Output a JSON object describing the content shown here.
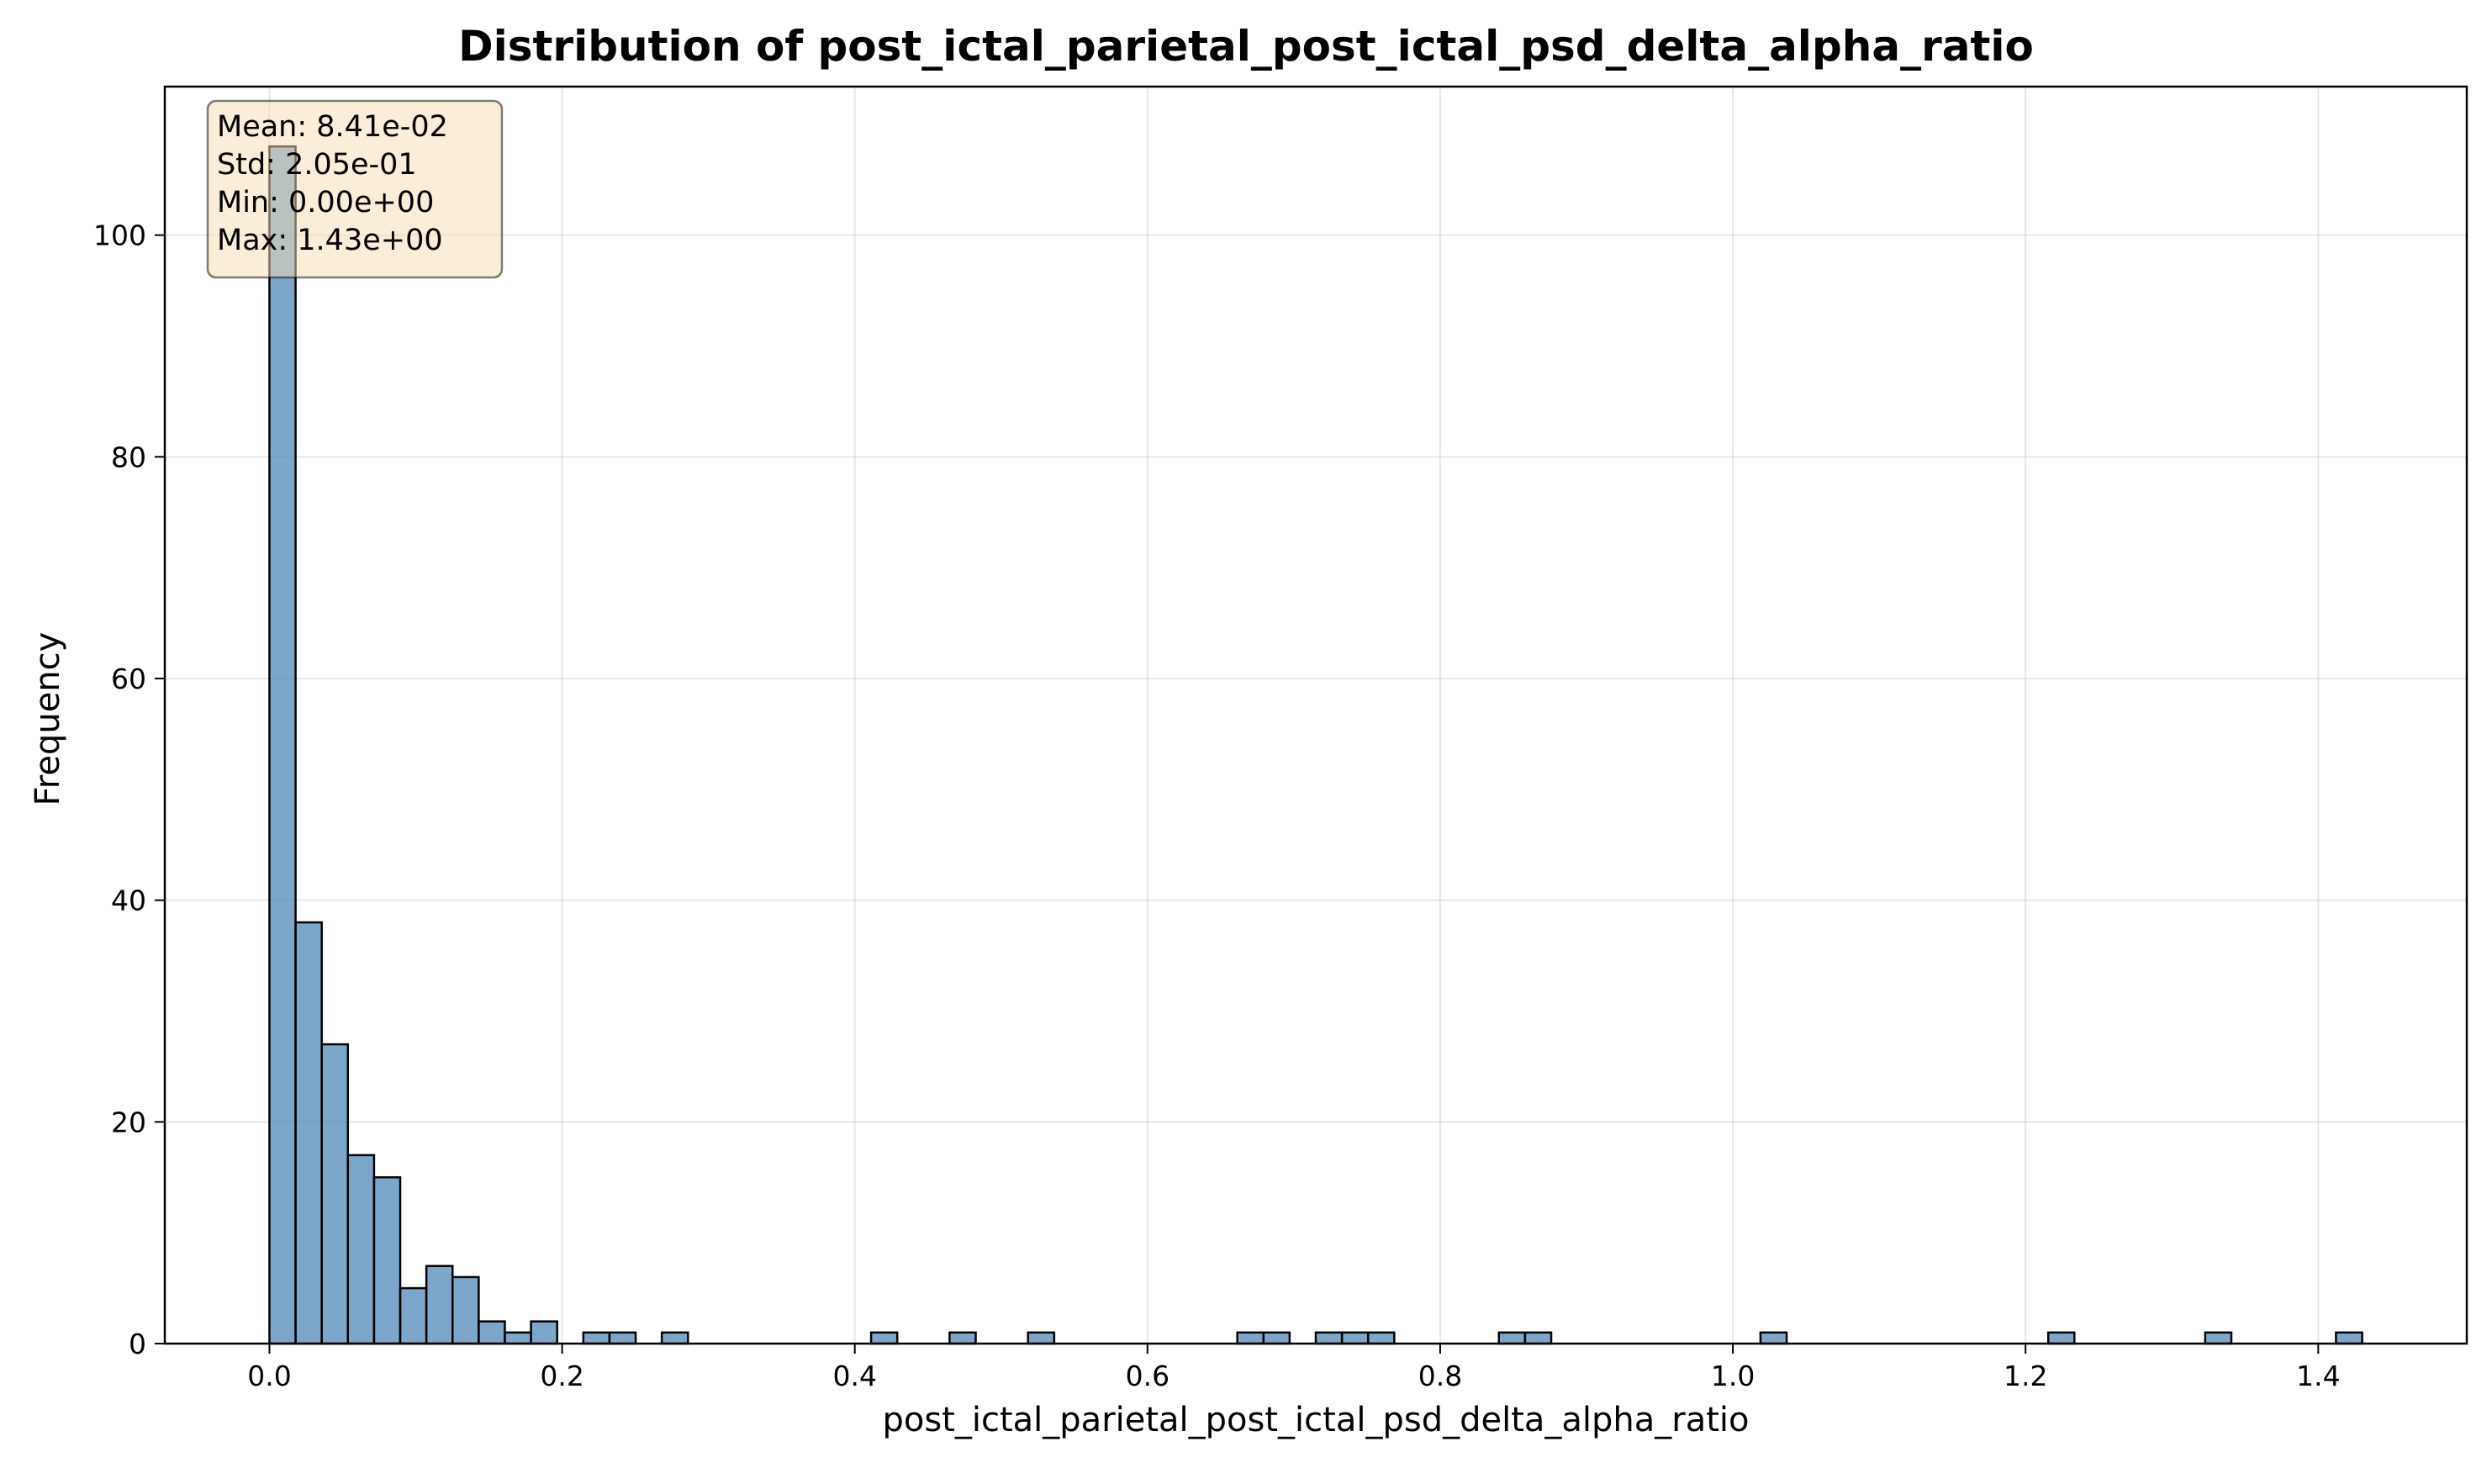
{
  "chart_data": {
    "type": "bar",
    "title": "Distribution of post_ictal_parietal_post_ictal_psd_delta_alpha_ratio",
    "xlabel": "post_ictal_parietal_post_ictal_psd_delta_alpha_ratio",
    "ylabel": "Frequency",
    "xlim": [
      -0.0715,
      1.5015
    ],
    "ylim": [
      0,
      113.4
    ],
    "xticks": [
      0.0,
      0.2,
      0.4,
      0.6,
      0.8,
      1.0,
      1.2,
      1.4
    ],
    "xtick_labels": [
      "0.0",
      "0.2",
      "0.4",
      "0.6",
      "0.8",
      "1.0",
      "1.2",
      "1.4"
    ],
    "yticks": [
      0,
      20,
      40,
      60,
      80,
      100
    ],
    "ytick_labels": [
      "0",
      "20",
      "40",
      "60",
      "80",
      "100"
    ],
    "grid": true,
    "bin_start": 0.0,
    "bin_end": 1.43,
    "bins": 80,
    "values": [
      108,
      38,
      27,
      17,
      15,
      5,
      7,
      6,
      2,
      1,
      2,
      0,
      1,
      1,
      0,
      1,
      0,
      0,
      0,
      0,
      0,
      0,
      0,
      1,
      0,
      0,
      1,
      0,
      0,
      1,
      0,
      0,
      0,
      0,
      0,
      0,
      0,
      1,
      1,
      0,
      1,
      1,
      1,
      0,
      0,
      0,
      0,
      1,
      1,
      0,
      0,
      0,
      0,
      0,
      0,
      0,
      0,
      1,
      0,
      0,
      0,
      0,
      0,
      0,
      0,
      0,
      0,
      0,
      1,
      0,
      0,
      0,
      0,
      0,
      1,
      0,
      0,
      0,
      0,
      1
    ],
    "stats": {
      "mean": "Mean: 8.41e-02",
      "std": "Std: 2.05e-01",
      "min": "Min: 0.00e+00",
      "max": "Max: 1.43e+00"
    },
    "colors": {
      "bar_fill": "#4682b4",
      "bar_edge": "#000000",
      "stats_box": "#f5deb3"
    }
  }
}
